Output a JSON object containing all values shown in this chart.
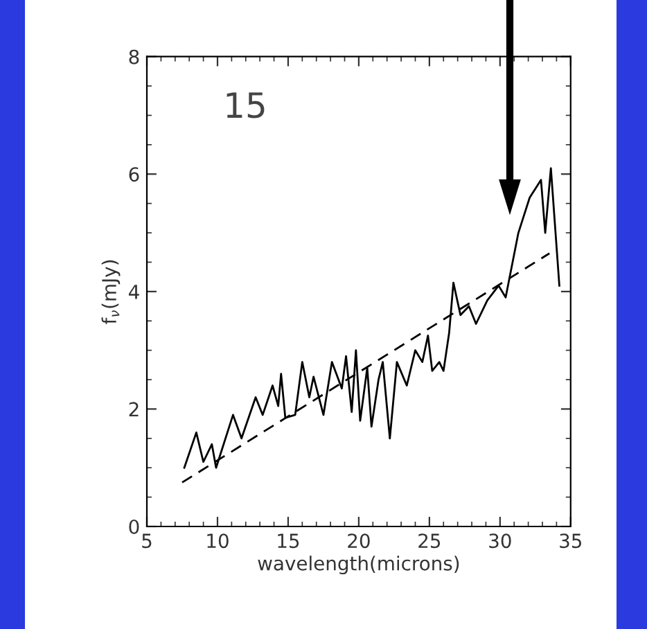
{
  "chart_data": {
    "type": "line",
    "xlabel": "wavelength(microns)",
    "ylabel": "f$_{ν}$(mJy)",
    "annotations": [
      "15"
    ],
    "xlim": [
      5,
      35
    ],
    "xticks": [
      5,
      10,
      15,
      20,
      25,
      30,
      35
    ],
    "ylim": [
      0,
      8
    ],
    "yticks": [
      0,
      2,
      4,
      6,
      8
    ],
    "grid": false,
    "legend": false,
    "marker": "none",
    "series": [
      {
        "color": "#000000",
        "line_style": "solid",
        "x": [
          7.65,
          8.5,
          9.0,
          9.6,
          9.9,
          11.1,
          11.7,
          12.7,
          13.2,
          13.9,
          14.3,
          14.5,
          14.8,
          15.5,
          16.0,
          16.5,
          16.8,
          17.5,
          18.1,
          18.8,
          19.1,
          19.5,
          19.8,
          20.1,
          20.6,
          20.9,
          21.4,
          21.7,
          22.2,
          22.7,
          23.4,
          24.0,
          24.5,
          24.9,
          25.2,
          25.7,
          26.0,
          26.4,
          26.7,
          27.2,
          27.8,
          28.3,
          29.1,
          29.9,
          30.4,
          31.3,
          32.1,
          32.9,
          33.2,
          33.6,
          34.2
        ],
        "values": [
          1.0,
          1.6,
          1.1,
          1.4,
          1.0,
          1.9,
          1.5,
          2.2,
          1.9,
          2.4,
          2.05,
          2.6,
          1.85,
          1.9,
          2.8,
          2.2,
          2.55,
          1.9,
          2.8,
          2.35,
          2.9,
          1.95,
          3.0,
          1.8,
          2.7,
          1.7,
          2.5,
          2.8,
          1.5,
          2.8,
          2.4,
          3.0,
          2.8,
          3.25,
          2.65,
          2.8,
          2.65,
          3.3,
          4.15,
          3.6,
          3.75,
          3.45,
          3.85,
          4.1,
          3.9,
          5.0,
          5.6,
          5.9,
          5.0,
          6.1,
          4.1
        ]
      },
      {
        "color": "#000000",
        "line_style": "dashed",
        "x": [
          7.5,
          33.5
        ],
        "values": [
          0.75,
          4.65
        ]
      }
    ]
  }
}
